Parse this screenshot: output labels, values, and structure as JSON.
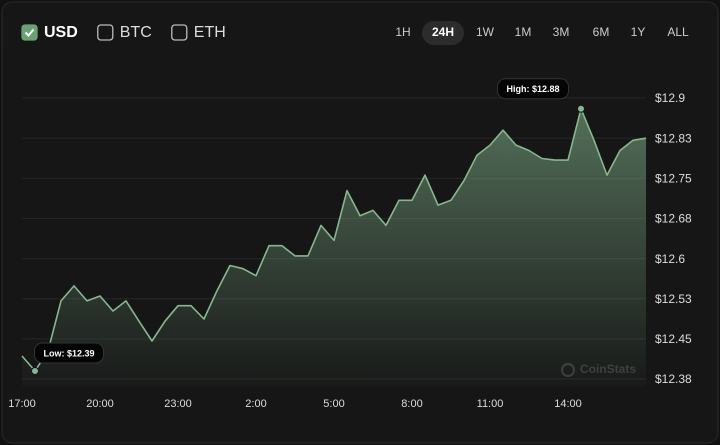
{
  "controls": {
    "currencies": [
      {
        "label": "USD",
        "checked": true
      },
      {
        "label": "BTC",
        "checked": false
      },
      {
        "label": "ETH",
        "checked": false
      }
    ],
    "ranges": [
      "1H",
      "24H",
      "1W",
      "1M",
      "3M",
      "6M",
      "1Y",
      "ALL"
    ],
    "selected_range": "24H"
  },
  "chart_data": {
    "type": "area",
    "color": "#86b890",
    "watermark": "CoinStats",
    "x": [
      "17:00",
      "17:30",
      "18:00",
      "18:30",
      "19:00",
      "19:30",
      "20:00",
      "20:30",
      "21:00",
      "21:30",
      "22:00",
      "22:30",
      "23:00",
      "23:30",
      "0:00",
      "0:30",
      "1:00",
      "1:30",
      "2:00",
      "2:30",
      "3:00",
      "3:30",
      "4:00",
      "4:30",
      "5:00",
      "5:30",
      "6:00",
      "6:30",
      "7:00",
      "7:30",
      "8:00",
      "8:30",
      "9:00",
      "9:30",
      "10:00",
      "10:30",
      "11:00",
      "11:30",
      "12:00",
      "12:30",
      "13:00",
      "13:30",
      "14:00",
      "14:30",
      "15:00",
      "15:30",
      "16:00",
      "16:30",
      "17:00"
    ],
    "values": [
      12.418,
      12.39,
      12.427,
      12.521,
      12.549,
      12.521,
      12.53,
      12.502,
      12.521,
      12.483,
      12.446,
      12.483,
      12.512,
      12.512,
      12.487,
      12.54,
      12.587,
      12.581,
      12.568,
      12.624,
      12.624,
      12.605,
      12.605,
      12.662,
      12.634,
      12.727,
      12.68,
      12.69,
      12.662,
      12.709,
      12.709,
      12.756,
      12.7,
      12.709,
      12.746,
      12.793,
      12.812,
      12.84,
      12.812,
      12.802,
      12.787,
      12.784,
      12.784,
      12.88,
      12.821,
      12.756,
      12.802,
      12.821,
      12.825
    ],
    "xticks": [
      "20:00",
      "23:00",
      "2:00",
      "5:00",
      "8:00",
      "11:00",
      "14:00",
      "17:00"
    ],
    "ylim": [
      12.36,
      12.93
    ],
    "yticks": [
      {
        "value": 12.375,
        "label": "$12.38"
      },
      {
        "value": 12.45,
        "label": "$12.45"
      },
      {
        "value": 12.525,
        "label": "$12.53"
      },
      {
        "value": 12.6,
        "label": "$12.6"
      },
      {
        "value": 12.675,
        "label": "$12.68"
      },
      {
        "value": 12.75,
        "label": "$12.75"
      },
      {
        "value": 12.825,
        "label": "$12.83"
      },
      {
        "value": 12.9,
        "label": "$12.9"
      }
    ],
    "grid": true,
    "annotations": [
      {
        "label": "High: $12.88",
        "x": "14:30",
        "value": 12.88
      },
      {
        "label": "Low: $12.39",
        "x": "17:30",
        "value": 12.39
      }
    ]
  }
}
